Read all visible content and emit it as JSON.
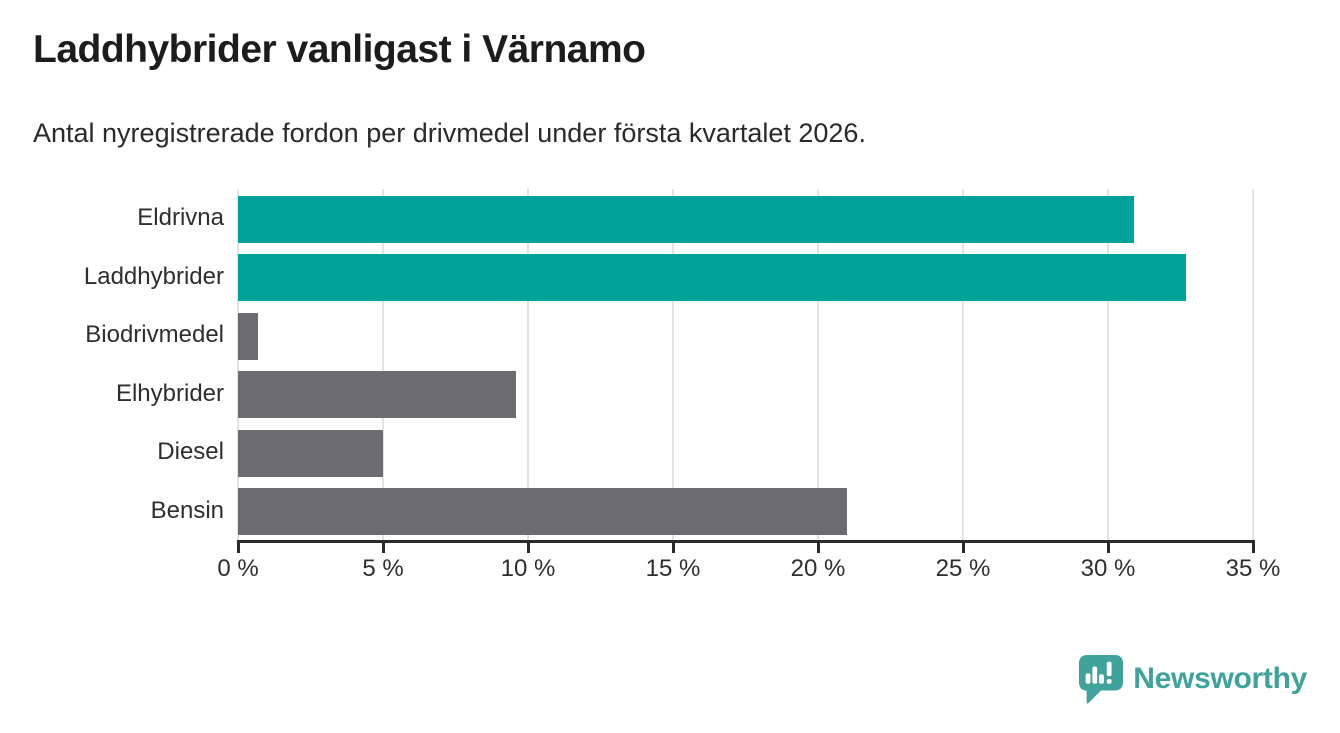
{
  "page": {
    "title": "Laddhybrider vanligast i Värnamo",
    "subtitle": "Antal nyregistrerade fordon per drivmedel under första kvartalet 2026."
  },
  "chart_data": {
    "type": "bar",
    "orientation": "horizontal",
    "title": "Laddhybrider vanligast i Värnamo",
    "subtitle": "Antal nyregistrerade fordon per drivmedel under första kvartalet 2026.",
    "categories": [
      "Eldrivna",
      "Laddhybrider",
      "Biodrivmedel",
      "Elhybrider",
      "Diesel",
      "Bensin"
    ],
    "values": [
      30.9,
      32.7,
      0.7,
      9.6,
      5.0,
      21.0
    ],
    "unit": "%",
    "xlim": [
      0,
      35
    ],
    "ticks": [
      0,
      5,
      10,
      15,
      20,
      25,
      30,
      35
    ],
    "tick_suffix": " %",
    "grid": true,
    "legend": "none",
    "bar_colors": [
      "#00a29a",
      "#00a29a",
      "#6b6b70",
      "#6b6b70",
      "#6b6b70",
      "#6b6b70"
    ],
    "highlight_color": "#00a29a",
    "base_color": "#6b6b70",
    "gridline_color": "#e3e3e3",
    "axis_color": "#2b2b2b"
  },
  "branding": {
    "logo_text": "Newsworthy",
    "logo_color": "#3fa29b",
    "logo_icon": "speech-bubble-bar-chart-icon"
  }
}
